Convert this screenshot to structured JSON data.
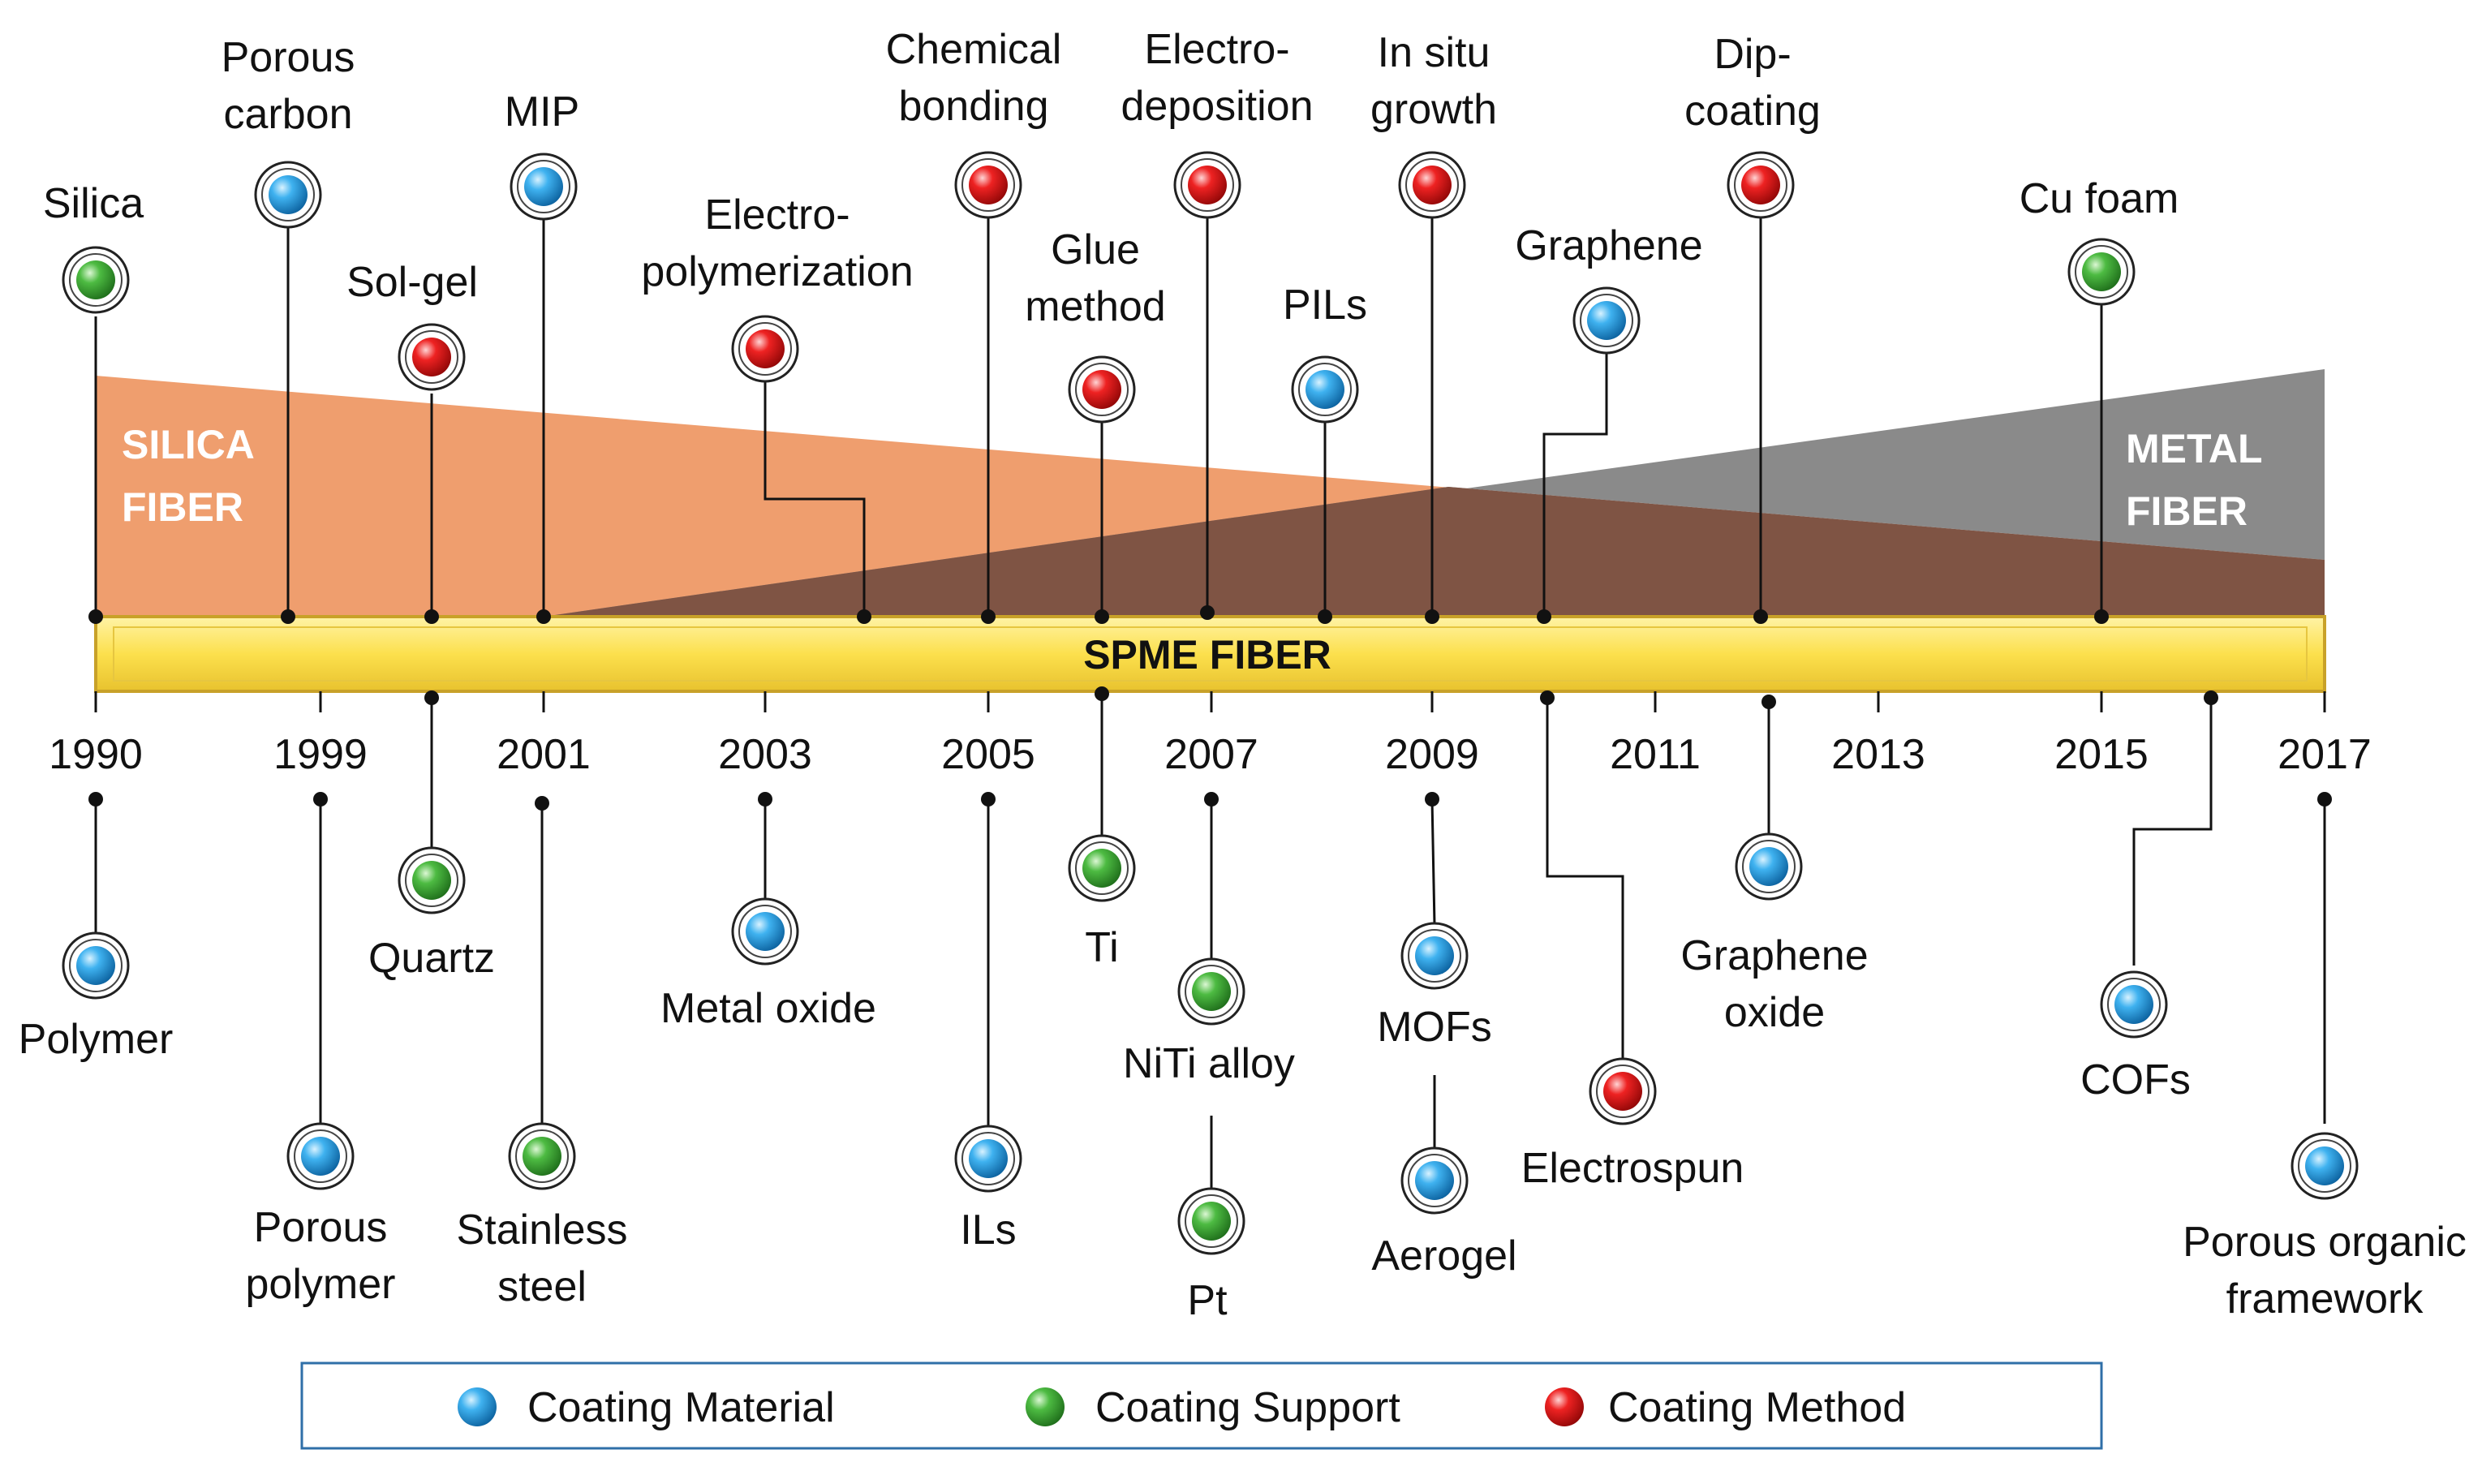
{
  "colors": {
    "silica": "#ef9e6e",
    "metal": "#8a8a8a",
    "overlap": "#7f5444",
    "bar": "#fce04d",
    "material": "#2a9fe0",
    "support": "#3aa53a",
    "method": "#e51b1b"
  },
  "band_labels": {
    "silica": [
      "SILICA",
      "FIBER"
    ],
    "metal": [
      "METAL",
      "FIBER"
    ]
  },
  "bar_title": "SPME FIBER",
  "years": [
    "1990",
    "1999",
    "2001",
    "2003",
    "2005",
    "2007",
    "2009",
    "2011",
    "2013",
    "2015",
    "2017"
  ],
  "top_items": [
    {
      "label": [
        "Silica"
      ],
      "kind": "support"
    },
    {
      "label": [
        "Porous",
        "carbon"
      ],
      "kind": "material"
    },
    {
      "label": [
        "Sol-gel"
      ],
      "kind": "method"
    },
    {
      "label": [
        "MIP"
      ],
      "kind": "material"
    },
    {
      "label": [
        "Electro-",
        "polymerization"
      ],
      "kind": "method"
    },
    {
      "label": [
        "Chemical",
        "bonding"
      ],
      "kind": "method"
    },
    {
      "label": [
        "Glue",
        "method"
      ],
      "kind": "method"
    },
    {
      "label": [
        "Electro-",
        "deposition"
      ],
      "kind": "method"
    },
    {
      "label": [
        "PILs"
      ],
      "kind": "material"
    },
    {
      "label": [
        "In situ",
        "growth"
      ],
      "kind": "method"
    },
    {
      "label": [
        "Graphene"
      ],
      "kind": "material"
    },
    {
      "label": [
        "Dip-",
        "coating"
      ],
      "kind": "method"
    },
    {
      "label": [
        "Cu foam"
      ],
      "kind": "support"
    }
  ],
  "bottom_items": [
    {
      "label": [
        "Polymer"
      ],
      "kind": "material"
    },
    {
      "label": [
        "Porous",
        "polymer"
      ],
      "kind": "material"
    },
    {
      "label": [
        "Quartz"
      ],
      "kind": "support"
    },
    {
      "label": [
        "Stainless",
        "steel"
      ],
      "kind": "support"
    },
    {
      "label": [
        "Metal oxide"
      ],
      "kind": "material"
    },
    {
      "label": [
        "ILs"
      ],
      "kind": "material"
    },
    {
      "label": [
        "Ti"
      ],
      "kind": "support"
    },
    {
      "label": [
        "NiTi alloy"
      ],
      "kind": "support"
    },
    {
      "label": [
        "Pt"
      ],
      "kind": "support"
    },
    {
      "label": [
        "MOFs"
      ],
      "kind": "material"
    },
    {
      "label": [
        "Aerogel"
      ],
      "kind": "material"
    },
    {
      "label": [
        "Electrospun"
      ],
      "kind": "method"
    },
    {
      "label": [
        "Graphene",
        "oxide"
      ],
      "kind": "material"
    },
    {
      "label": [
        "COFs"
      ],
      "kind": "material"
    },
    {
      "label": [
        "Porous organic",
        "framework"
      ],
      "kind": "material"
    }
  ],
  "legend": [
    {
      "label": "Coating Material",
      "kind": "material"
    },
    {
      "label": "Coating Support",
      "kind": "support"
    },
    {
      "label": "Coating Method",
      "kind": "method"
    }
  ]
}
